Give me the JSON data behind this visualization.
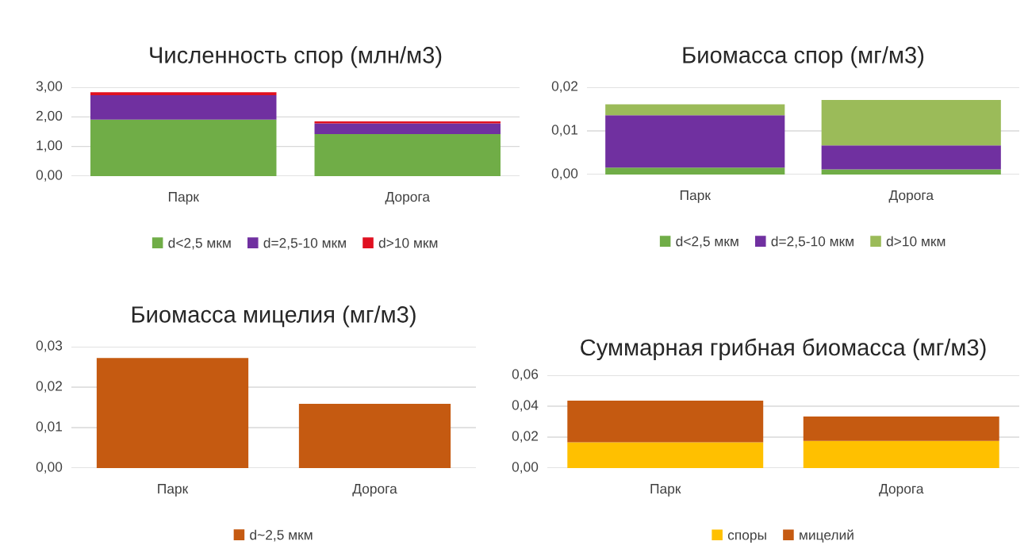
{
  "chart_data": [
    {
      "type": "bar",
      "stacked": true,
      "title": "Численность спор (млн/м3)",
      "categories": [
        "Парк",
        "Дорога"
      ],
      "series": [
        {
          "name": "d<2,5 мкм",
          "color": "#70ad47",
          "values": [
            1.91,
            1.42
          ]
        },
        {
          "name": "d=2,5-10 мкм",
          "color": "#7030a0",
          "values": [
            0.82,
            0.36
          ]
        },
        {
          "name": "d>10 мкм",
          "color": "#e01020",
          "values": [
            0.1,
            0.07
          ]
        }
      ],
      "ylim": [
        0,
        3
      ],
      "yticks": [
        {
          "value": 0,
          "label": "0,00"
        },
        {
          "value": 1,
          "label": "1,00"
        },
        {
          "value": 2,
          "label": "2,00"
        },
        {
          "value": 3,
          "label": "3,00"
        }
      ],
      "grid": "y",
      "legend": "bottom"
    },
    {
      "type": "bar",
      "stacked": true,
      "title": "Биомасса спор (мг/м3)",
      "categories": [
        "Парк",
        "Дорога"
      ],
      "series": [
        {
          "name": "d<2,5 мкм",
          "color": "#70ad47",
          "values": [
            0.0016,
            0.0012
          ]
        },
        {
          "name": "d=2,5-10 мкм",
          "color": "#7030a0",
          "values": [
            0.012,
            0.0055
          ]
        },
        {
          "name": "d>10 мкм",
          "color": "#9bbb59",
          "values": [
            0.0025,
            0.0104
          ]
        }
      ],
      "ylim": [
        0,
        0.02
      ],
      "yticks": [
        {
          "value": 0,
          "label": "0,00"
        },
        {
          "value": 0.01,
          "label": "0,01"
        },
        {
          "value": 0.02,
          "label": "0,02"
        }
      ],
      "grid": "y",
      "legend": "bottom"
    },
    {
      "type": "bar",
      "title": "Биомасса мицелия (мг/м3)",
      "categories": [
        "Парк",
        "Дорога"
      ],
      "series": [
        {
          "name": "d~2,5 мкм",
          "color": "#c55a11",
          "values": [
            0.0272,
            0.0159
          ]
        }
      ],
      "ylim": [
        0,
        0.03
      ],
      "yticks": [
        {
          "value": 0,
          "label": "0,00"
        },
        {
          "value": 0.01,
          "label": "0,01"
        },
        {
          "value": 0.02,
          "label": "0,02"
        },
        {
          "value": 0.03,
          "label": "0,03"
        }
      ],
      "grid": "y",
      "legend": "bottom"
    },
    {
      "type": "bar",
      "stacked": true,
      "title": "Суммарная грибная биомасса (мг/м3)",
      "categories": [
        "Парк",
        "Дорога"
      ],
      "series": [
        {
          "name": "споры",
          "color": "#ffc000",
          "values": [
            0.0167,
            0.0176
          ]
        },
        {
          "name": "мицелий",
          "color": "#c55a11",
          "values": [
            0.0269,
            0.0157
          ]
        }
      ],
      "ylim": [
        0,
        0.06
      ],
      "yticks": [
        {
          "value": 0,
          "label": "0,00"
        },
        {
          "value": 0.02,
          "label": "0,02"
        },
        {
          "value": 0.04,
          "label": "0,04"
        },
        {
          "value": 0.06,
          "label": "0,06"
        }
      ],
      "grid": "y",
      "legend": "bottom"
    }
  ]
}
